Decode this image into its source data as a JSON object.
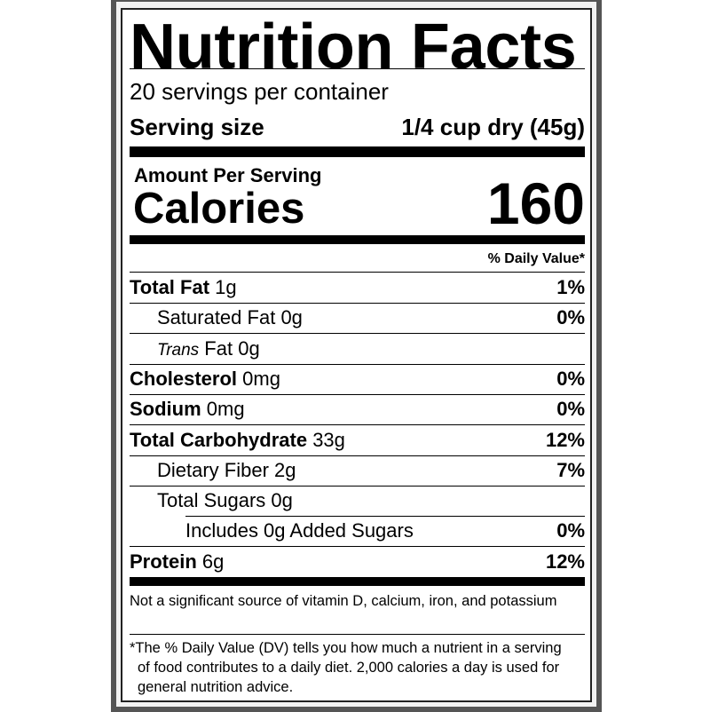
{
  "title": "Nutrition Facts",
  "servings_per_container": "20 servings per container",
  "serving_size": {
    "label": "Serving size",
    "value": "1/4 cup dry (45g)"
  },
  "amount_per_serving": "Amount Per Serving",
  "calories": {
    "label": "Calories",
    "value": "160"
  },
  "daily_value_header": "% Daily Value*",
  "nutrients": [
    {
      "name": "Total Fat",
      "amount": "1g",
      "dv": "1%"
    },
    {
      "name": "Saturated Fat",
      "amount": "0g",
      "dv": "0%"
    },
    {
      "name_italic": "Trans",
      "name": "Fat",
      "amount": "0g",
      "dv": ""
    },
    {
      "name": "Cholesterol",
      "amount": "0mg",
      "dv": "0%"
    },
    {
      "name": "Sodium",
      "amount": "0mg",
      "dv": "0%"
    },
    {
      "name": "Total Carbohydrate",
      "amount": "33g",
      "dv": "12%"
    },
    {
      "name": "Dietary Fiber",
      "amount": "2g",
      "dv": "7%"
    },
    {
      "name": "Total Sugars",
      "amount": "0g",
      "dv": ""
    },
    {
      "name": "Includes 0g Added Sugars",
      "amount": "",
      "dv": "0%"
    },
    {
      "name": "Protein",
      "amount": "6g",
      "dv": "12%"
    }
  ],
  "vitamin_note": "Not a significant source of vitamin D, calcium, iron, and potassium",
  "footnote": {
    "asterisk": "*",
    "text": "The % Daily Value (DV) tells you how much a nutrient in a serving of food contributes to a daily diet. 2,000 calories a day is used for general nutrition advice."
  }
}
